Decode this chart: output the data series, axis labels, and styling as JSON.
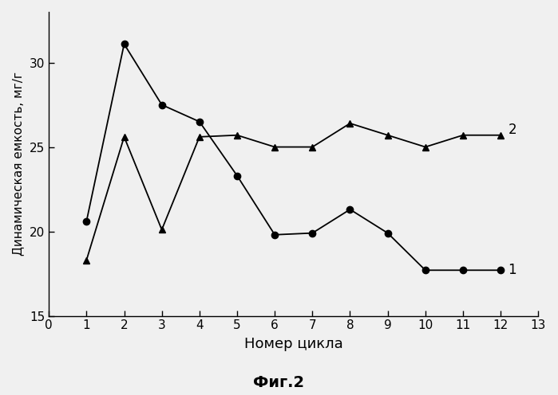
{
  "series1_x": [
    1,
    2,
    3,
    4,
    5,
    6,
    7,
    8,
    9,
    10,
    11,
    12
  ],
  "series1_y": [
    20.6,
    31.1,
    27.5,
    26.5,
    23.3,
    19.8,
    19.9,
    21.3,
    19.9,
    17.7,
    17.7,
    17.7
  ],
  "series2_x": [
    1,
    2,
    3,
    4,
    5,
    6,
    7,
    8,
    9,
    10,
    11,
    12
  ],
  "series2_y": [
    18.3,
    25.6,
    20.1,
    25.6,
    25.7,
    25.0,
    25.0,
    26.4,
    25.7,
    25.0,
    25.7,
    25.7
  ],
  "label1": "1",
  "label2": "2",
  "xlabel": "Номер цикла",
  "ylabel": "Динамическая емкость, мг/г",
  "caption": "Фиг.2",
  "xlim": [
    0,
    13
  ],
  "ylim": [
    15,
    33
  ],
  "xticks": [
    0,
    1,
    2,
    3,
    4,
    5,
    6,
    7,
    8,
    9,
    10,
    11,
    12,
    13
  ],
  "yticks": [
    15,
    20,
    25,
    30
  ],
  "line_color": "#000000",
  "bg_color": "#f0f0f0",
  "marker1": "o",
  "marker2": "^",
  "markersize": 6,
  "linewidth": 1.3,
  "font_family": "DejaVu Sans"
}
